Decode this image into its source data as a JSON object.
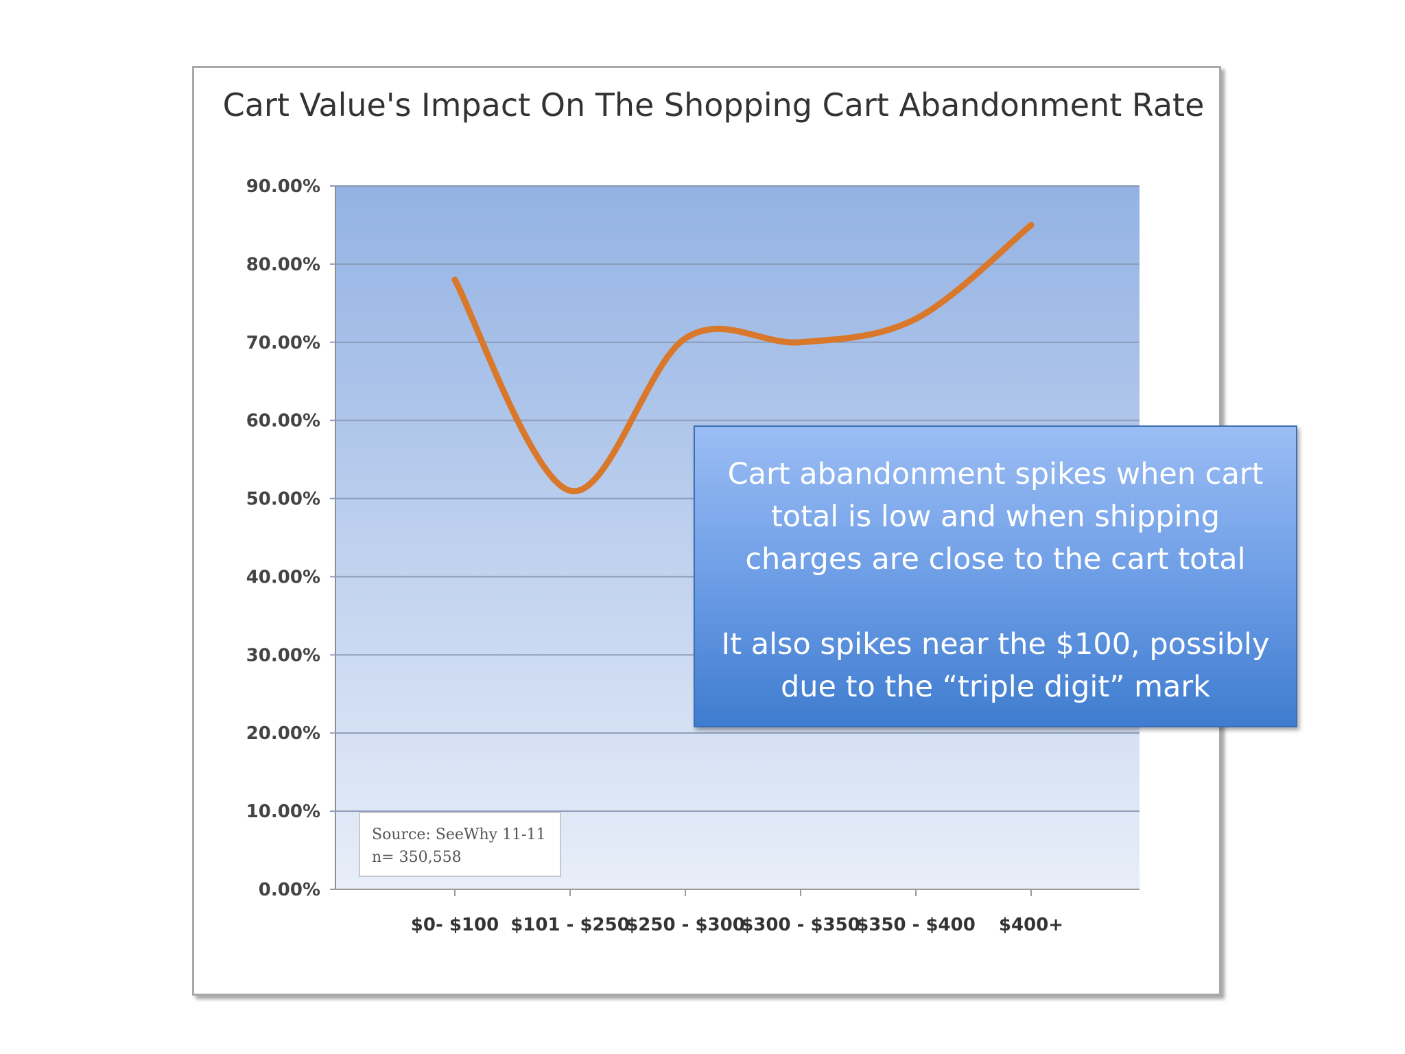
{
  "chart_data": {
    "type": "line",
    "title": "Cart Value's Impact On The Shopping Cart Abandonment Rate",
    "categories": [
      "$0- $100",
      "$101 - $250",
      "$250 - $300",
      "$300 - $350",
      "$350 - $400",
      "$400+"
    ],
    "series": [
      {
        "values": [
          78.0,
          51.0,
          70.5,
          70.0,
          73.0,
          85.0
        ]
      }
    ],
    "ylim": [
      0,
      90
    ],
    "yticks": [
      "0.00%",
      "10.00%",
      "20.00%",
      "30.00%",
      "40.00%",
      "50.00%",
      "60.00%",
      "70.00%",
      "80.00%",
      "90.00%"
    ],
    "grid": true,
    "source_lines": [
      "Source: SeeWhy 11-11",
      "n= 350,558"
    ],
    "colors": {
      "line": "#d9782b",
      "plot_top": "#93b2e3",
      "plot_bottom": "#e8eef9",
      "grid": "#8a9cb8"
    }
  },
  "callout": {
    "paragraph1": "Cart abandonment spikes when cart total is low and when shipping charges are close to the cart total",
    "paragraph2": "It also spikes near the $100, possibly due to the “triple digit” mark"
  }
}
